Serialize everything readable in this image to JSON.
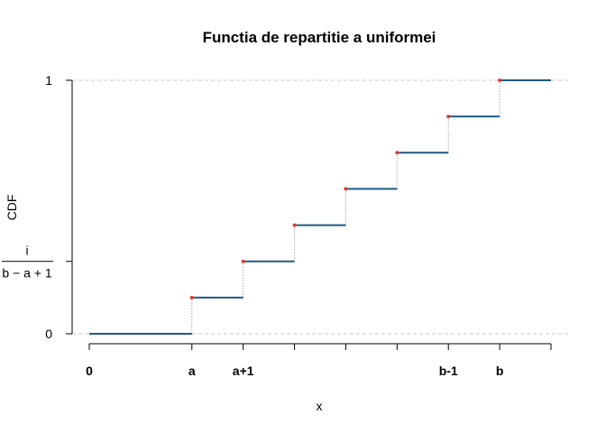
{
  "chart_data": {
    "type": "line",
    "subtype": "step-cdf",
    "title": "Functia de repartitie a uniformei",
    "xlabel": "x",
    "ylabel": "CDF",
    "xlim": [
      0,
      9
    ],
    "ylim": [
      0,
      1
    ],
    "x_ticks": [
      {
        "x": 0,
        "label": "0"
      },
      {
        "x": 2,
        "label": "a"
      },
      {
        "x": 3,
        "label": "a+1"
      },
      {
        "x": 4,
        "label": ""
      },
      {
        "x": 5,
        "label": ""
      },
      {
        "x": 6,
        "label": ""
      },
      {
        "x": 7,
        "label": "b-1"
      },
      {
        "x": 8,
        "label": "b"
      },
      {
        "x": 9,
        "label": ""
      }
    ],
    "y_ticks": [
      {
        "y": 0,
        "label": "0"
      },
      {
        "y": 1,
        "label": "1"
      }
    ],
    "y_fraction_label": {
      "y": 0.2857,
      "numerator": "i",
      "denominator": "b − a + 1"
    },
    "reference_lines_y": [
      0,
      1
    ],
    "steps": [
      {
        "x_start": 0,
        "x_end": 2,
        "y": 0.0
      },
      {
        "x_start": 2,
        "x_end": 3,
        "y": 0.1429
      },
      {
        "x_start": 3,
        "x_end": 4,
        "y": 0.2857
      },
      {
        "x_start": 4,
        "x_end": 5,
        "y": 0.4286
      },
      {
        "x_start": 5,
        "x_end": 6,
        "y": 0.5714
      },
      {
        "x_start": 6,
        "x_end": 7,
        "y": 0.7143
      },
      {
        "x_start": 7,
        "x_end": 8,
        "y": 0.8571
      },
      {
        "x_start": 8,
        "x_end": 9,
        "y": 1.0
      }
    ],
    "grid": false,
    "colors": {
      "step": "#1f5a85",
      "point": "#e03a2f",
      "jump": "#aaaaaa",
      "reference": "#c8c8c8",
      "axis": "#000000"
    }
  }
}
